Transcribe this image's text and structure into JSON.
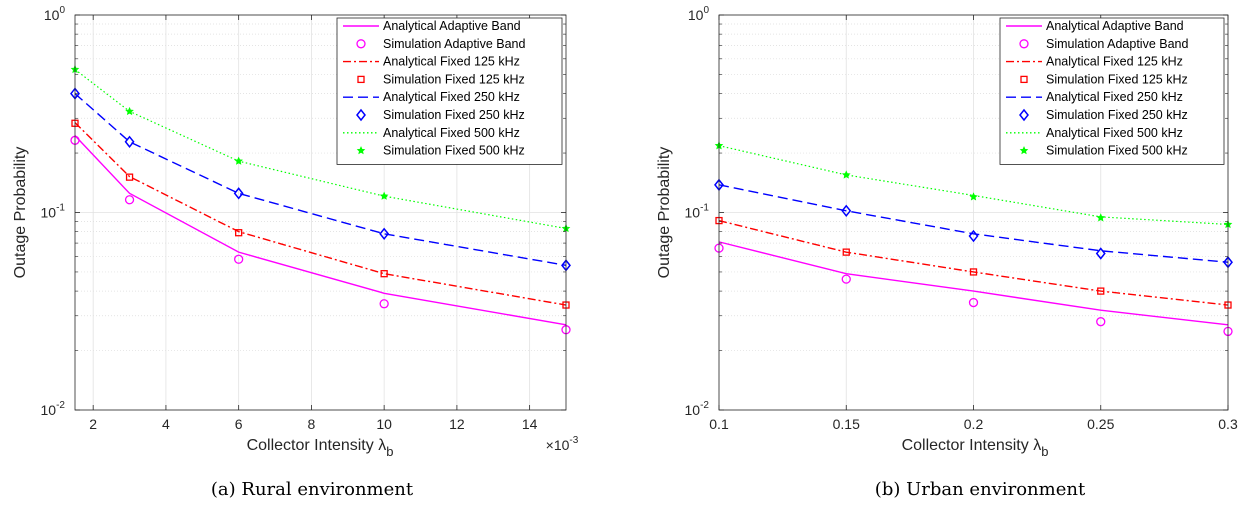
{
  "chart_data": [
    {
      "type": "line",
      "caption": "(a) Rural environment",
      "xlabel": "Collector Intensity λ",
      "xlabel_sub": "b",
      "ylabel": "Outage Probability",
      "x_exponent": "×10",
      "x_exponent_power": "-3",
      "xlim": [
        1.5,
        15
      ],
      "ylim": [
        0.01,
        1
      ],
      "yscale": "log",
      "grid": true,
      "legend_position": "top-right",
      "xticks": [
        "2",
        "4",
        "6",
        "8",
        "10",
        "12",
        "14"
      ],
      "yticks": [
        {
          "value": 0.01,
          "base": "10",
          "exp": "-2"
        },
        {
          "value": 0.1,
          "base": "10",
          "exp": "-1"
        },
        {
          "value": 1,
          "base": "10",
          "exp": "0"
        }
      ],
      "x": [
        1.5,
        3,
        6,
        10,
        15
      ],
      "series": [
        {
          "name": "Analytical Adaptive Band",
          "kind": "line",
          "dash": "solid",
          "color": "#ff00ff",
          "values": [
            0.245,
            0.125,
            0.063,
            0.039,
            0.027
          ]
        },
        {
          "name": "Simulation Adaptive Band",
          "kind": "marker",
          "marker": "circle",
          "color": "#ff00ff",
          "values": [
            0.232,
            0.116,
            0.058,
            0.0345,
            0.0255
          ]
        },
        {
          "name": "Analytical Fixed 125 kHz",
          "kind": "line",
          "dash": "dashdot",
          "color": "#ff0000",
          "values": [
            0.285,
            0.152,
            0.08,
            0.049,
            0.034
          ]
        },
        {
          "name": "Simulation Fixed 125 kHz",
          "kind": "marker",
          "marker": "square",
          "color": "#ff0000",
          "values": [
            0.283,
            0.151,
            0.079,
            0.049,
            0.034
          ]
        },
        {
          "name": "Analytical Fixed 250 kHz",
          "kind": "line",
          "dash": "dash",
          "color": "#0000ff",
          "values": [
            0.4,
            0.228,
            0.125,
            0.078,
            0.054
          ]
        },
        {
          "name": "Simulation Fixed 250 kHz",
          "kind": "marker",
          "marker": "diamond",
          "color": "#0000ff",
          "values": [
            0.4,
            0.228,
            0.125,
            0.078,
            0.054
          ]
        },
        {
          "name": "Analytical Fixed 500 kHz",
          "kind": "line",
          "dash": "dot",
          "color": "#00ff00",
          "values": [
            0.53,
            0.325,
            0.182,
            0.121,
            0.083
          ]
        },
        {
          "name": "Simulation Fixed 500 kHz",
          "kind": "marker",
          "marker": "star",
          "color": "#00ff00",
          "values": [
            0.53,
            0.325,
            0.182,
            0.121,
            0.083
          ]
        }
      ]
    },
    {
      "type": "line",
      "caption": "(b) Urban environment",
      "xlabel": "Collector Intensity λ",
      "xlabel_sub": "b",
      "ylabel": "Outage Probability",
      "xlim": [
        0.1,
        0.3
      ],
      "ylim": [
        0.01,
        1
      ],
      "yscale": "log",
      "grid": true,
      "legend_position": "top-right",
      "xticks": [
        "0.1",
        "0.15",
        "0.2",
        "0.25",
        "0.3"
      ],
      "yticks": [
        {
          "value": 0.01,
          "base": "10",
          "exp": "-2"
        },
        {
          "value": 0.1,
          "base": "10",
          "exp": "-1"
        },
        {
          "value": 1,
          "base": "10",
          "exp": "0"
        }
      ],
      "x": [
        0.1,
        0.15,
        0.2,
        0.25,
        0.3
      ],
      "series": [
        {
          "name": "Analytical Adaptive Band",
          "kind": "line",
          "dash": "solid",
          "color": "#ff00ff",
          "values": [
            0.071,
            0.049,
            0.04,
            0.032,
            0.027
          ]
        },
        {
          "name": "Simulation Adaptive Band",
          "kind": "marker",
          "marker": "circle",
          "color": "#ff00ff",
          "values": [
            0.066,
            0.046,
            0.035,
            0.028,
            0.025
          ]
        },
        {
          "name": "Analytical Fixed 125 kHz",
          "kind": "line",
          "dash": "dashdot",
          "color": "#ff0000",
          "values": [
            0.091,
            0.063,
            0.05,
            0.04,
            0.034
          ]
        },
        {
          "name": "Simulation Fixed 125 kHz",
          "kind": "marker",
          "marker": "square",
          "color": "#ff0000",
          "values": [
            0.091,
            0.063,
            0.05,
            0.04,
            0.034
          ]
        },
        {
          "name": "Analytical Fixed 250 kHz",
          "kind": "line",
          "dash": "dash",
          "color": "#0000ff",
          "values": [
            0.138,
            0.102,
            0.078,
            0.064,
            0.056
          ]
        },
        {
          "name": "Simulation Fixed 250 kHz",
          "kind": "marker",
          "marker": "diamond",
          "color": "#0000ff",
          "values": [
            0.138,
            0.102,
            0.076,
            0.062,
            0.056
          ]
        },
        {
          "name": "Analytical Fixed 500 kHz",
          "kind": "line",
          "dash": "dot",
          "color": "#00ff00",
          "values": [
            0.218,
            0.155,
            0.122,
            0.095,
            0.087
          ]
        },
        {
          "name": "Simulation Fixed 500 kHz",
          "kind": "marker",
          "marker": "star",
          "color": "#00ff00",
          "values": [
            0.218,
            0.155,
            0.12,
            0.094,
            0.087
          ]
        }
      ]
    }
  ]
}
